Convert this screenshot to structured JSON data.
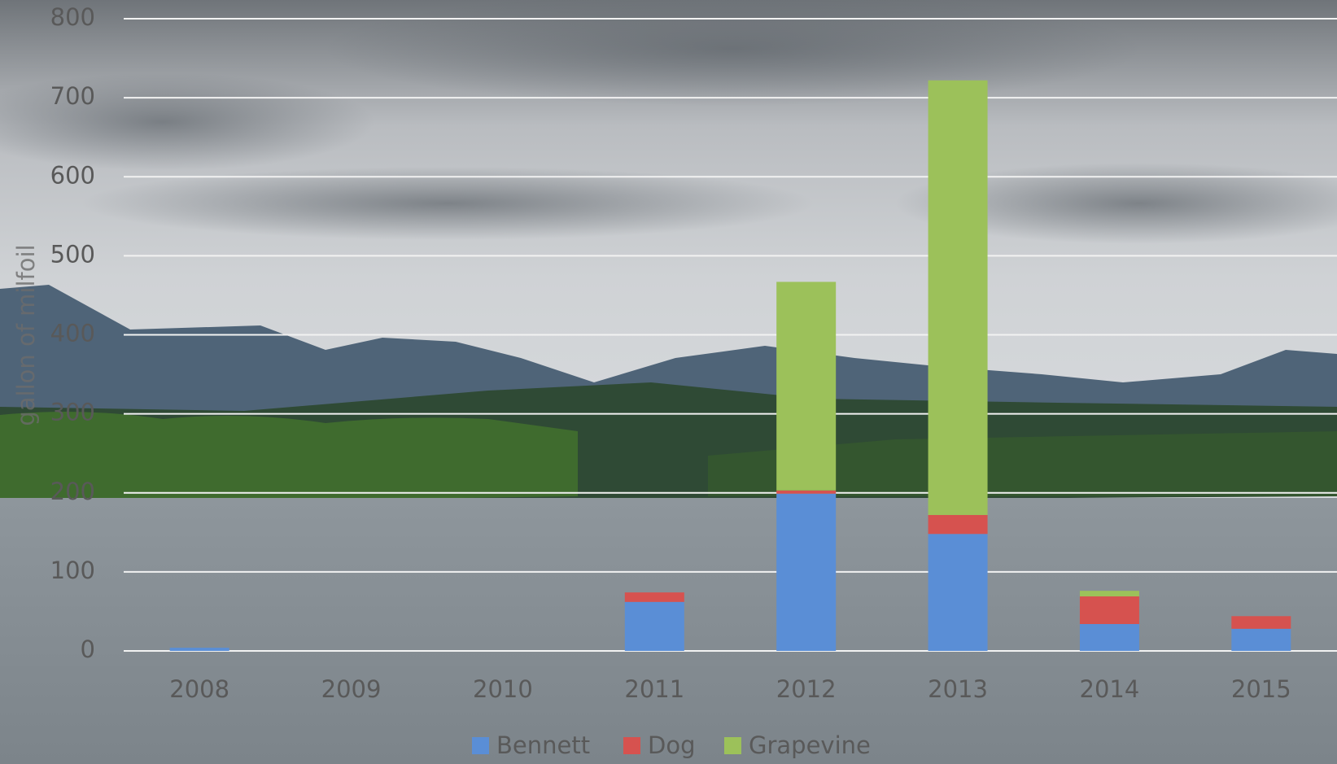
{
  "chart_data": {
    "type": "stacked_bar",
    "y_label": "gallon of milfoil",
    "categories": [
      "2008",
      "2009",
      "2010",
      "2011",
      "2012",
      "2013",
      "2014",
      "2015"
    ],
    "series": [
      {
        "name": "Bennett",
        "color": "#5a8ed6",
        "values": [
          4,
          0,
          0,
          62,
          199,
          148,
          34,
          28
        ]
      },
      {
        "name": "Dog",
        "color": "#d6524f",
        "values": [
          0,
          0,
          0,
          12,
          4,
          24,
          35,
          16
        ]
      },
      {
        "name": "Grapevine",
        "color": "#9cc15a",
        "values": [
          0,
          0,
          0,
          0,
          264,
          550,
          7,
          0
        ]
      }
    ],
    "ylim": [
      0,
      800
    ],
    "yticks": [
      0,
      100,
      200,
      300,
      400,
      500,
      600,
      700,
      800
    ],
    "grid": true,
    "legend": "bottom"
  }
}
